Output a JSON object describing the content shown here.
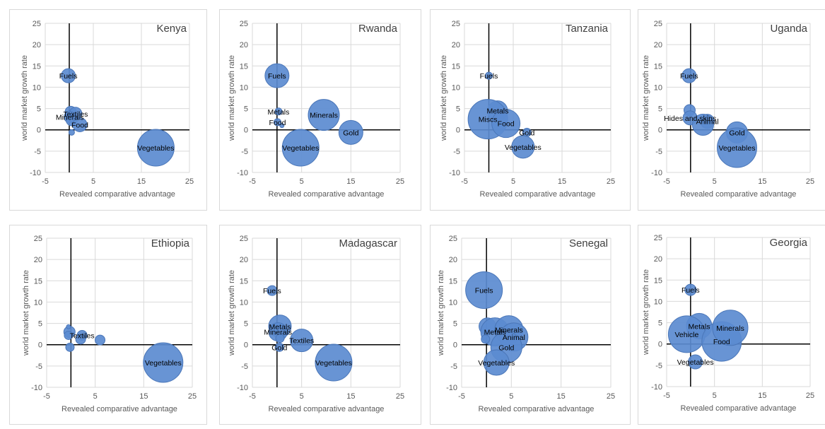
{
  "style": {
    "bubble_fill": "#5b8bd0",
    "bubble_stroke": "#4a76b8",
    "grid_color": "#d9d9d9",
    "axis_color": "#000000",
    "text_color": "#595959"
  },
  "axes": {
    "x_label": "Revealed comparative advantage",
    "y_label": "world market growth rate",
    "x_ticks": [
      "-5",
      "5",
      "15",
      "25"
    ],
    "y_ticks": [
      "25",
      "20",
      "15",
      "10",
      "5",
      "0",
      "-5",
      "-10"
    ]
  },
  "chart_data": [
    {
      "type": "scatter",
      "title": "Kenya",
      "xlim": [
        -5,
        25
      ],
      "ylim": [
        -10,
        25
      ],
      "grid": true,
      "points": [
        {
          "x": -0.2,
          "y": 12.7,
          "size": 10,
          "label": "Fuels"
        },
        {
          "x": 0.3,
          "y": 4.2,
          "size": 8,
          "label": ""
        },
        {
          "x": 1.3,
          "y": 3.8,
          "size": 9,
          "label": "Textiles"
        },
        {
          "x": 0.1,
          "y": 3.0,
          "size": 8,
          "label": "Minerals"
        },
        {
          "x": 0.5,
          "y": 2.3,
          "size": 8,
          "label": ""
        },
        {
          "x": 2.2,
          "y": 1.2,
          "size": 10,
          "label": "Food"
        },
        {
          "x": 0.5,
          "y": -0.6,
          "size": 4,
          "label": ""
        },
        {
          "x": 18.0,
          "y": -4.2,
          "size": 26,
          "label": "Vegetables"
        }
      ]
    },
    {
      "type": "scatter",
      "title": "Rwanda",
      "xlim": [
        -5,
        25
      ],
      "ylim": [
        -10,
        25
      ],
      "grid": true,
      "points": [
        {
          "x": 0.0,
          "y": 12.7,
          "size": 17,
          "label": "Fuels"
        },
        {
          "x": 0.3,
          "y": 4.3,
          "size": 5,
          "label": "Metals"
        },
        {
          "x": 0.1,
          "y": 1.8,
          "size": 5,
          "label": "Food"
        },
        {
          "x": 1.0,
          "y": 1.0,
          "size": 3,
          "label": ""
        },
        {
          "x": 9.5,
          "y": 3.5,
          "size": 22,
          "label": "Minerals"
        },
        {
          "x": 15.0,
          "y": -0.6,
          "size": 17,
          "label": "Gold"
        },
        {
          "x": 4.8,
          "y": -4.2,
          "size": 26,
          "label": "Vegetables"
        }
      ]
    },
    {
      "type": "scatter",
      "title": "Tanzania",
      "xlim": [
        -5,
        25
      ],
      "ylim": [
        -10,
        25
      ],
      "grid": true,
      "points": [
        {
          "x": 0.0,
          "y": 12.7,
          "size": 5,
          "label": "Fuels"
        },
        {
          "x": 1.8,
          "y": 4.5,
          "size": 14,
          "label": "Metals"
        },
        {
          "x": -0.2,
          "y": 2.5,
          "size": 28,
          "label": "Miscs"
        },
        {
          "x": 3.5,
          "y": 1.5,
          "size": 20,
          "label": "Food"
        },
        {
          "x": 7.8,
          "y": -0.6,
          "size": 6,
          "label": "Gold"
        },
        {
          "x": 7.0,
          "y": -4.0,
          "size": 16,
          "label": "Vegetables"
        }
      ]
    },
    {
      "type": "scatter",
      "title": "Uganda",
      "xlim": [
        -5,
        25
      ],
      "ylim": [
        -10,
        25
      ],
      "grid": true,
      "points": [
        {
          "x": -0.3,
          "y": 12.7,
          "size": 10,
          "label": "Fuels"
        },
        {
          "x": -0.2,
          "y": 4.6,
          "size": 8,
          "label": ""
        },
        {
          "x": -0.1,
          "y": 2.8,
          "size": 10,
          "label": "Hides and skins"
        },
        {
          "x": 3.5,
          "y": 2.0,
          "size": 10,
          "label": "Animal"
        },
        {
          "x": 2.6,
          "y": 1.2,
          "size": 15,
          "label": ""
        },
        {
          "x": 9.7,
          "y": -0.6,
          "size": 15,
          "label": "Gold"
        },
        {
          "x": 9.7,
          "y": -4.2,
          "size": 28,
          "label": "Vegetables"
        }
      ]
    },
    {
      "type": "scatter",
      "title": "Ethiopia",
      "xlim": [
        -5,
        25
      ],
      "ylim": [
        -10,
        25
      ],
      "grid": true,
      "points": [
        {
          "x": -0.3,
          "y": 3.0,
          "size": 8,
          "label": ""
        },
        {
          "x": -0.5,
          "y": 2.2,
          "size": 6,
          "label": ""
        },
        {
          "x": -0.5,
          "y": 4.2,
          "size": 3,
          "label": ""
        },
        {
          "x": 2.3,
          "y": 2.2,
          "size": 7,
          "label": "Textiles"
        },
        {
          "x": 2.0,
          "y": 1.3,
          "size": 7,
          "label": ""
        },
        {
          "x": 6.0,
          "y": 1.1,
          "size": 7,
          "label": ""
        },
        {
          "x": -0.2,
          "y": -0.6,
          "size": 6,
          "label": ""
        },
        {
          "x": 19.0,
          "y": -4.2,
          "size": 28,
          "label": "Vegetables"
        }
      ]
    },
    {
      "type": "scatter",
      "title": "Madagascar",
      "xlim": [
        -5,
        25
      ],
      "ylim": [
        -10,
        25
      ],
      "grid": true,
      "points": [
        {
          "x": -1.0,
          "y": 12.7,
          "size": 7,
          "label": "Fuels"
        },
        {
          "x": 0.6,
          "y": 4.3,
          "size": 16,
          "label": "Metals"
        },
        {
          "x": 0.2,
          "y": 3.0,
          "size": 13,
          "label": "Minerals"
        },
        {
          "x": 0.6,
          "y": 1.5,
          "size": 6,
          "label": ""
        },
        {
          "x": 5.0,
          "y": 1.0,
          "size": 16,
          "label": "Textiles"
        },
        {
          "x": 0.5,
          "y": -0.6,
          "size": 6,
          "label": "Gold"
        },
        {
          "x": 11.5,
          "y": -4.2,
          "size": 26,
          "label": "Vegetables"
        }
      ]
    },
    {
      "type": "scatter",
      "title": "Senegal",
      "xlim": [
        -5,
        25
      ],
      "ylim": [
        -10,
        25
      ],
      "grid": true,
      "points": [
        {
          "x": -0.5,
          "y": 12.8,
          "size": 26,
          "label": "Fuels"
        },
        {
          "x": 0.2,
          "y": 4.3,
          "size": 12,
          "label": ""
        },
        {
          "x": 1.7,
          "y": 3.0,
          "size": 20,
          "label": "Metals"
        },
        {
          "x": -0.2,
          "y": 1.3,
          "size": 6,
          "label": ""
        },
        {
          "x": 4.5,
          "y": 3.5,
          "size": 20,
          "label": "Minerals"
        },
        {
          "x": 5.5,
          "y": 1.8,
          "size": 20,
          "label": "Animal"
        },
        {
          "x": 4.0,
          "y": -0.6,
          "size": 22,
          "label": "Gold"
        },
        {
          "x": 2.0,
          "y": -4.2,
          "size": 18,
          "label": "Vegetables"
        }
      ]
    },
    {
      "type": "scatter",
      "title": "Georgia",
      "xlim": [
        -5,
        25
      ],
      "ylim": [
        -10,
        25
      ],
      "grid": true,
      "points": [
        {
          "x": 0.0,
          "y": 12.7,
          "size": 8,
          "label": "Fuels"
        },
        {
          "x": 1.8,
          "y": 4.2,
          "size": 18,
          "label": "Metals"
        },
        {
          "x": -0.8,
          "y": 2.3,
          "size": 26,
          "label": "Vehicle"
        },
        {
          "x": 6.5,
          "y": 0.6,
          "size": 28,
          "label": "Food"
        },
        {
          "x": 8.3,
          "y": 3.8,
          "size": 25,
          "label": "Minerals"
        },
        {
          "x": 1.0,
          "y": -4.2,
          "size": 10,
          "label": "Vegetables"
        }
      ]
    }
  ]
}
